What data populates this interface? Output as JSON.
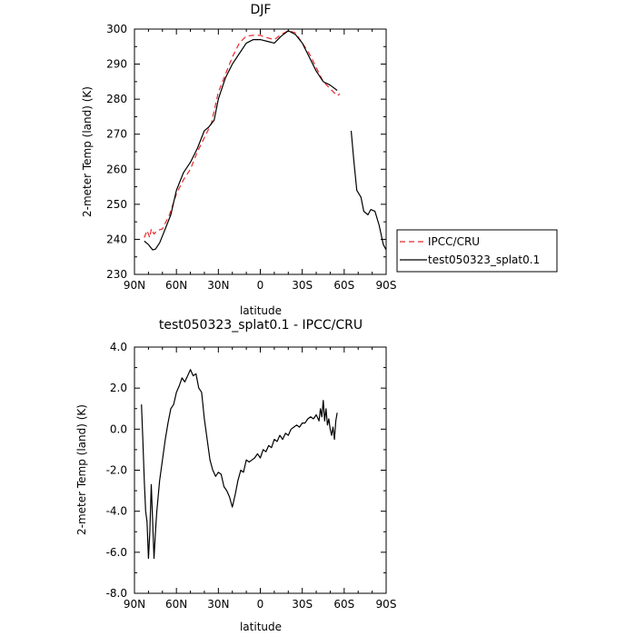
{
  "chart_data": [
    {
      "type": "line",
      "title": "DJF",
      "xlabel": "latitude",
      "ylabel": "2-meter Temp (land) (K)",
      "xlim": [
        90,
        -90
      ],
      "ylim": [
        230,
        300
      ],
      "xticks": [
        90,
        60,
        30,
        0,
        -30,
        -60,
        -90
      ],
      "xtick_labels": [
        "90N",
        "60N",
        "30N",
        "0",
        "30S",
        "60S",
        "90S"
      ],
      "yticks": [
        230,
        240,
        250,
        260,
        270,
        280,
        290,
        300
      ],
      "ytick_labels": [
        "230",
        "240",
        "250",
        "260",
        "270",
        "280",
        "290",
        "300"
      ],
      "legend": {
        "position": "outside-right"
      },
      "series": [
        {
          "name": "IPCC/CRU",
          "color": "#e8282b",
          "dash": "dashed",
          "points": [
            [
              83,
              240.5
            ],
            [
              81,
              242.5
            ],
            [
              79,
              240.5
            ],
            [
              78,
              243
            ],
            [
              76,
              241.5
            ],
            [
              74,
              242.5
            ],
            [
              70,
              243
            ],
            [
              65,
              247
            ],
            [
              60,
              253
            ],
            [
              55,
              257
            ],
            [
              50,
              260
            ],
            [
              45,
              265
            ],
            [
              40,
              269
            ],
            [
              35,
              273
            ],
            [
              30,
              282
            ],
            [
              25,
              287
            ],
            [
              20,
              292
            ],
            [
              15,
              296
            ],
            [
              10,
              298
            ],
            [
              5,
              298.2
            ],
            [
              0,
              298.2
            ],
            [
              -5,
              297.5
            ],
            [
              -10,
              297
            ],
            [
              -15,
              298.5
            ],
            [
              -20,
              299.5
            ],
            [
              -25,
              299
            ],
            [
              -30,
              296
            ],
            [
              -35,
              293
            ],
            [
              -40,
              289
            ],
            [
              -45,
              285
            ],
            [
              -50,
              283
            ],
            [
              -55,
              281
            ],
            [
              -57,
              281.5
            ]
          ]
        },
        {
          "name": "test050323_splat0.1",
          "color": "#000000",
          "dash": "solid",
          "segments": [
            [
              [
                83,
                239.5
              ],
              [
                80,
                238.5
              ],
              [
                77,
                237
              ],
              [
                75,
                237.2
              ],
              [
                72,
                239
              ],
              [
                68,
                243
              ],
              [
                64,
                247
              ],
              [
                60,
                254
              ],
              [
                55,
                259
              ],
              [
                50,
                262
              ],
              [
                45,
                266
              ],
              [
                40,
                271
              ],
              [
                37,
                272
              ],
              [
                33,
                274
              ],
              [
                30,
                280
              ],
              [
                25,
                286
              ],
              [
                20,
                290
              ],
              [
                15,
                293
              ],
              [
                10,
                296
              ],
              [
                5,
                297
              ],
              [
                0,
                297
              ],
              [
                -5,
                296.5
              ],
              [
                -10,
                296
              ],
              [
                -15,
                298
              ],
              [
                -20,
                299.5
              ],
              [
                -25,
                298.5
              ],
              [
                -30,
                296
              ],
              [
                -35,
                292
              ],
              [
                -40,
                288
              ],
              [
                -45,
                285
              ],
              [
                -50,
                284
              ],
              [
                -55,
                282.5
              ]
            ],
            [
              [
                -65,
                271
              ],
              [
                -67,
                262
              ],
              [
                -69,
                254
              ],
              [
                -72,
                252
              ],
              [
                -74,
                248
              ],
              [
                -77,
                247
              ],
              [
                -79,
                248.5
              ],
              [
                -82,
                248
              ],
              [
                -85,
                244
              ],
              [
                -88,
                238.5
              ],
              [
                -90,
                237
              ]
            ]
          ]
        }
      ]
    },
    {
      "type": "line",
      "title": "test050323_splat0.1 - IPCC/CRU",
      "xlabel": "latitude",
      "ylabel": "2-meter Temp (land) (K)",
      "xlim": [
        90,
        -90
      ],
      "ylim": [
        -8.0,
        4.0
      ],
      "xticks": [
        90,
        60,
        30,
        0,
        -30,
        -60,
        -90
      ],
      "xtick_labels": [
        "90N",
        "60N",
        "30N",
        "0",
        "30S",
        "60S",
        "90S"
      ],
      "yticks": [
        -8.0,
        -6.0,
        -4.0,
        -2.0,
        0.0,
        2.0,
        4.0
      ],
      "ytick_labels": [
        "-8.0",
        "-6.0",
        "-4.0",
        "-2.0",
        "0.0",
        "2.0",
        "4.0"
      ],
      "series": [
        {
          "name": "",
          "color": "#000000",
          "dash": "solid",
          "points": [
            [
              85,
              1.2
            ],
            [
              84,
              -0.5
            ],
            [
              83,
              -2.5
            ],
            [
              82,
              -4.0
            ],
            [
              81,
              -4.5
            ],
            [
              80,
              -6.3
            ],
            [
              79,
              -5.0
            ],
            [
              78,
              -2.7
            ],
            [
              77,
              -4.5
            ],
            [
              76,
              -6.3
            ],
            [
              75,
              -5.0
            ],
            [
              74,
              -4.0
            ],
            [
              72,
              -2.5
            ],
            [
              70,
              -1.5
            ],
            [
              68,
              -0.5
            ],
            [
              66,
              0.3
            ],
            [
              64,
              1.0
            ],
            [
              62,
              1.2
            ],
            [
              60,
              1.8
            ],
            [
              58,
              2.1
            ],
            [
              56,
              2.5
            ],
            [
              54,
              2.3
            ],
            [
              52,
              2.6
            ],
            [
              50,
              2.9
            ],
            [
              48,
              2.6
            ],
            [
              46,
              2.7
            ],
            [
              44,
              2.0
            ],
            [
              42,
              1.8
            ],
            [
              40,
              0.5
            ],
            [
              38,
              -0.5
            ],
            [
              36,
              -1.5
            ],
            [
              34,
              -2.0
            ],
            [
              32,
              -2.3
            ],
            [
              30,
              -2.1
            ],
            [
              28,
              -2.2
            ],
            [
              26,
              -2.8
            ],
            [
              24,
              -3.0
            ],
            [
              22,
              -3.3
            ],
            [
              20,
              -3.8
            ],
            [
              18,
              -3.2
            ],
            [
              16,
              -2.5
            ],
            [
              14,
              -2.0
            ],
            [
              12,
              -2.1
            ],
            [
              10,
              -1.5
            ],
            [
              8,
              -1.6
            ],
            [
              6,
              -1.5
            ],
            [
              4,
              -1.4
            ],
            [
              2,
              -1.2
            ],
            [
              0,
              -1.4
            ],
            [
              -2,
              -1.0
            ],
            [
              -4,
              -1.1
            ],
            [
              -6,
              -0.8
            ],
            [
              -8,
              -0.9
            ],
            [
              -10,
              -0.5
            ],
            [
              -12,
              -0.6
            ],
            [
              -14,
              -0.3
            ],
            [
              -16,
              -0.5
            ],
            [
              -18,
              -0.2
            ],
            [
              -20,
              -0.3
            ],
            [
              -22,
              0.0
            ],
            [
              -24,
              0.1
            ],
            [
              -26,
              0.2
            ],
            [
              -28,
              0.1
            ],
            [
              -30,
              0.3
            ],
            [
              -32,
              0.3
            ],
            [
              -34,
              0.5
            ],
            [
              -36,
              0.6
            ],
            [
              -38,
              0.5
            ],
            [
              -40,
              0.7
            ],
            [
              -42,
              0.4
            ],
            [
              -43,
              1.0
            ],
            [
              -44,
              0.6
            ],
            [
              -45,
              1.4
            ],
            [
              -46,
              0.4
            ],
            [
              -47,
              1.0
            ],
            [
              -48,
              0.2
            ],
            [
              -49,
              0.5
            ],
            [
              -50,
              0.0
            ],
            [
              -51,
              -0.3
            ],
            [
              -52,
              0.1
            ],
            [
              -53,
              -0.5
            ],
            [
              -54,
              0.4
            ],
            [
              -55,
              0.8
            ]
          ]
        }
      ]
    }
  ]
}
